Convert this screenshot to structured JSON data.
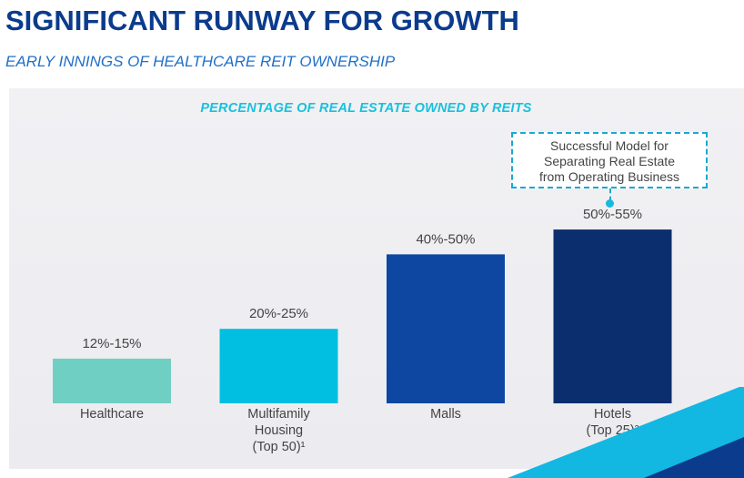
{
  "header": {
    "title": "SIGNIFICANT RUNWAY FOR GROWTH",
    "subtitle": "EARLY INNINGS OF HEALTHCARE REIT OWNERSHIP"
  },
  "callout": {
    "lines": [
      "Successful Model for",
      "Separating Real Estate",
      "from Operating Business"
    ]
  },
  "chart_data": {
    "type": "bar",
    "title": "PERCENTAGE OF REAL ESTATE OWNED BY REITS",
    "xlabel": "",
    "ylabel": "",
    "ylim": [
      0,
      55
    ],
    "grid": false,
    "categories": [
      [
        "Healthcare"
      ],
      [
        "Multifamily",
        "Housing",
        "(Top 50)¹"
      ],
      [
        "Malls"
      ],
      [
        "Hotels",
        "(Top 25)²"
      ]
    ],
    "range_low": [
      12,
      20,
      40,
      50
    ],
    "range_high": [
      15,
      25,
      50,
      55
    ],
    "values": [
      13.5,
      22.5,
      45,
      52.5
    ],
    "labels": [
      "12%-15%",
      "20%-25%",
      "40%-50%",
      "50%-55%"
    ],
    "colors": [
      "#6fcfc2",
      "#00bfe0",
      "#0d47a1",
      "#0b2e6f"
    ]
  }
}
